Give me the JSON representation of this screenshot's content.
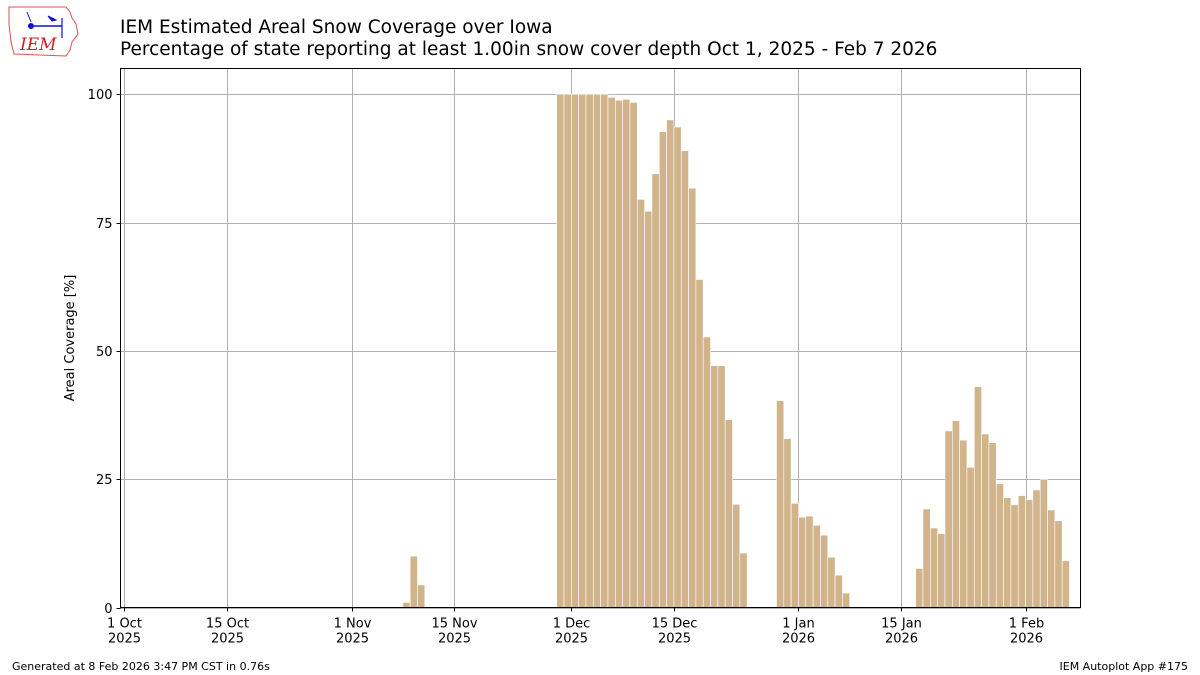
{
  "header": {
    "title": "IEM Estimated Areal Snow Coverage over Iowa",
    "subtitle": "Percentage of state reporting at least 1.00in snow cover depth Oct 1, 2025 - Feb 7 2026"
  },
  "logo": {
    "text": "IEM",
    "colors": {
      "outline": "#d9534f",
      "symbol": "#1010cc",
      "text": "#cc2222"
    }
  },
  "footer": {
    "left": "Generated at 8 Feb 2026 3:47 PM CST in 0.76s",
    "right": "IEM Autoplot App #175"
  },
  "chart_data": {
    "type": "bar",
    "title": "IEM Estimated Areal Snow Coverage over Iowa",
    "subtitle": "Percentage of state reporting at least 1.00in snow cover depth Oct 1, 2025 - Feb 7 2026",
    "xlabel": "",
    "ylabel": "Areal Coverage [%]",
    "xlim": [
      "2025-09-30T11:00",
      "2026-02-08T12:00"
    ],
    "ylim": [
      0,
      105
    ],
    "grid": true,
    "bar_color": "#d2b48c",
    "x_ticks": [
      {
        "date": "2025-10-01",
        "label": [
          "1 Oct",
          "2025"
        ]
      },
      {
        "date": "2025-10-15",
        "label": [
          "15 Oct",
          "2025"
        ]
      },
      {
        "date": "2025-11-01",
        "label": [
          "1 Nov",
          "2025"
        ]
      },
      {
        "date": "2025-11-15",
        "label": [
          "15 Nov",
          "2025"
        ]
      },
      {
        "date": "2025-12-01",
        "label": [
          "1 Dec",
          "2025"
        ]
      },
      {
        "date": "2025-12-15",
        "label": [
          "15 Dec",
          "2025"
        ]
      },
      {
        "date": "2026-01-01",
        "label": [
          "1 Jan",
          "2026"
        ]
      },
      {
        "date": "2026-01-15",
        "label": [
          "15 Jan",
          "2026"
        ]
      },
      {
        "date": "2026-02-01",
        "label": [
          "1 Feb",
          "2026"
        ]
      }
    ],
    "y_ticks": [
      0,
      25,
      50,
      75,
      100
    ],
    "data": [
      [
        "2025-11-08",
        1.0
      ],
      [
        "2025-11-09",
        10.0
      ],
      [
        "2025-11-10",
        4.4
      ],
      [
        "2025-11-29",
        100
      ],
      [
        "2025-11-30",
        100
      ],
      [
        "2025-12-01",
        100
      ],
      [
        "2025-12-02",
        100
      ],
      [
        "2025-12-03",
        100
      ],
      [
        "2025-12-04",
        100
      ],
      [
        "2025-12-05",
        100
      ],
      [
        "2025-12-06",
        99.4
      ],
      [
        "2025-12-07",
        98.8
      ],
      [
        "2025-12-08",
        99.0
      ],
      [
        "2025-12-09",
        98.4
      ],
      [
        "2025-12-10",
        79.5
      ],
      [
        "2025-12-11",
        77.2
      ],
      [
        "2025-12-12",
        84.5
      ],
      [
        "2025-12-13",
        92.7
      ],
      [
        "2025-12-14",
        95.0
      ],
      [
        "2025-12-15",
        93.6
      ],
      [
        "2025-12-16",
        89.0
      ],
      [
        "2025-12-17",
        81.7
      ],
      [
        "2025-12-18",
        63.9
      ],
      [
        "2025-12-19",
        52.7
      ],
      [
        "2025-12-20",
        47.1
      ],
      [
        "2025-12-21",
        47.1
      ],
      [
        "2025-12-22",
        36.6
      ],
      [
        "2025-12-23",
        20.1
      ],
      [
        "2025-12-24",
        10.6
      ],
      [
        "2025-12-29",
        40.3
      ],
      [
        "2025-12-30",
        32.9
      ],
      [
        "2025-12-31",
        20.3
      ],
      [
        "2026-01-01",
        17.6
      ],
      [
        "2026-01-02",
        17.8
      ],
      [
        "2026-01-03",
        16.0
      ],
      [
        "2026-01-04",
        14.1
      ],
      [
        "2026-01-05",
        9.8
      ],
      [
        "2026-01-06",
        6.3
      ],
      [
        "2026-01-07",
        2.8
      ],
      [
        "2026-01-17",
        7.6
      ],
      [
        "2026-01-18",
        19.2
      ],
      [
        "2026-01-19",
        15.5
      ],
      [
        "2026-01-20",
        14.4
      ],
      [
        "2026-01-21",
        34.4
      ],
      [
        "2026-01-22",
        36.4
      ],
      [
        "2026-01-23",
        32.6
      ],
      [
        "2026-01-24",
        27.3
      ],
      [
        "2026-01-25",
        43.0
      ],
      [
        "2026-01-26",
        33.8
      ],
      [
        "2026-01-27",
        32.1
      ],
      [
        "2026-01-28",
        24.1
      ],
      [
        "2026-01-29",
        21.4
      ],
      [
        "2026-01-30",
        20.0
      ],
      [
        "2026-01-31",
        21.8
      ],
      [
        "2026-02-01",
        21.0
      ],
      [
        "2026-02-02",
        22.9
      ],
      [
        "2026-02-03",
        24.9
      ],
      [
        "2026-02-04",
        19.0
      ],
      [
        "2026-02-05",
        16.9
      ],
      [
        "2026-02-06",
        9.1
      ]
    ]
  }
}
